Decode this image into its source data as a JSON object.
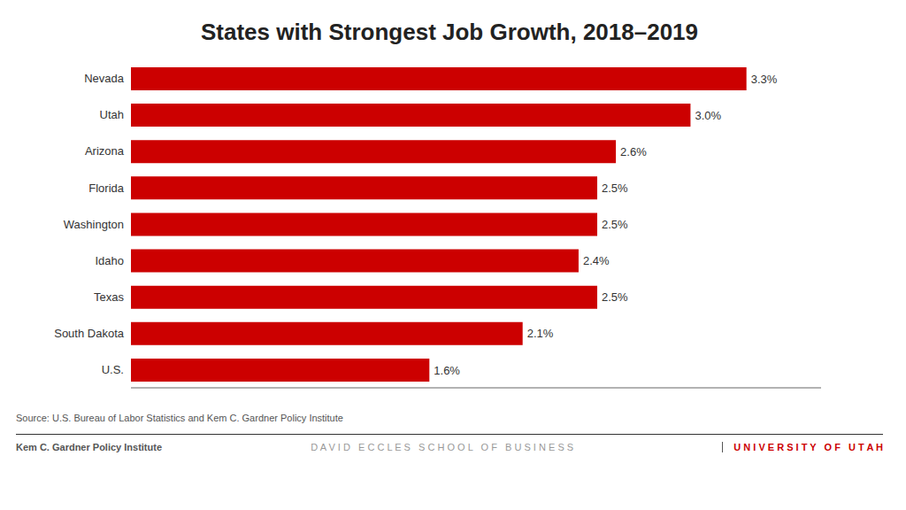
{
  "chart_data": {
    "type": "bar",
    "title": "States with Strongest Job Growth, 2018–2019",
    "orientation": "horizontal",
    "categories": [
      "Nevada",
      "Utah",
      "Arizona",
      "Florida",
      "Washington",
      "Idaho",
      "Texas",
      "South Dakota",
      "U.S."
    ],
    "values": [
      3.3,
      3.0,
      2.6,
      2.5,
      2.5,
      2.4,
      2.5,
      2.1,
      1.6
    ],
    "value_labels": [
      "3.3%",
      "3.0%",
      "2.6%",
      "2.5%",
      "2.5%",
      "2.4%",
      "2.5%",
      "2.1%",
      "1.6%"
    ],
    "data_labels": true,
    "color": "#CC0000",
    "xlim": [
      0,
      3.7
    ],
    "tick_labels": "y",
    "grid": false,
    "annotations": [
      "Source: U.S. Bureau of Labor Statistics and Kem C. Gardner Policy Institute",
      "Kem C. Gardner Policy Institute",
      "D A V I D   E C C L E S   S C H O O L   O F   B U S I N E S S",
      "U N I V E R S I T Y   O F   U T A H"
    ]
  }
}
